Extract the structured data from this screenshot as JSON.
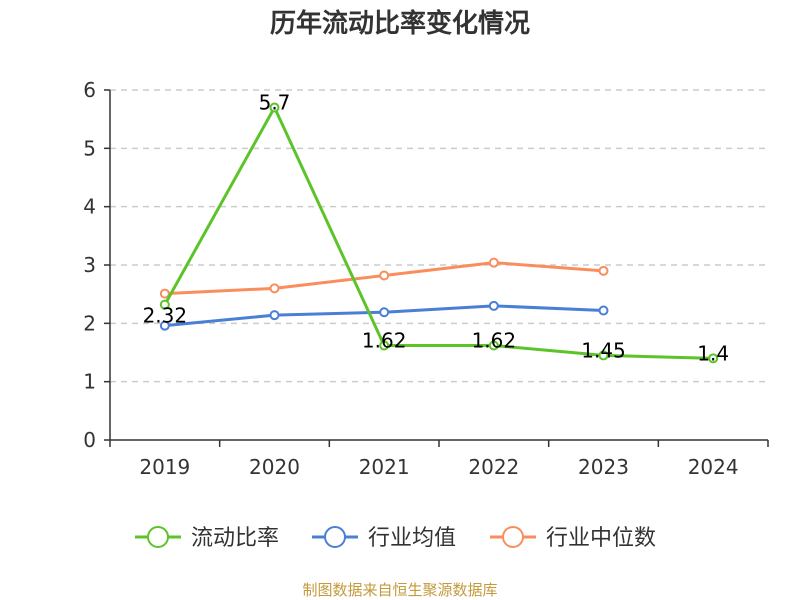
{
  "chart_data": {
    "type": "line",
    "title": "历年流动比率变化情况",
    "categories": [
      "2019",
      "2020",
      "2021",
      "2022",
      "2023",
      "2024"
    ],
    "y_ticks": [
      "0",
      "1",
      "2",
      "3",
      "4",
      "5",
      "6"
    ],
    "ylim": [
      0,
      6
    ],
    "grid": true,
    "legend_position": "bottom",
    "series": [
      {
        "name": "流动比率",
        "color": "#5cc329",
        "values": [
          2.32,
          5.7,
          1.62,
          1.62,
          1.45,
          1.4
        ],
        "data_labels": [
          "2.32",
          "5.7",
          "1.62",
          "1.62",
          "1.45",
          "1.4"
        ]
      },
      {
        "name": "行业均值",
        "color": "#4a7fd6",
        "values": [
          1.96,
          2.14,
          2.19,
          2.3,
          2.22,
          null
        ]
      },
      {
        "name": "行业中位数",
        "color": "#f98e5c",
        "values": [
          2.51,
          2.6,
          2.82,
          3.04,
          2.9,
          null
        ]
      }
    ]
  },
  "footer": {
    "source": "制图数据来自恒生聚源数据库"
  }
}
